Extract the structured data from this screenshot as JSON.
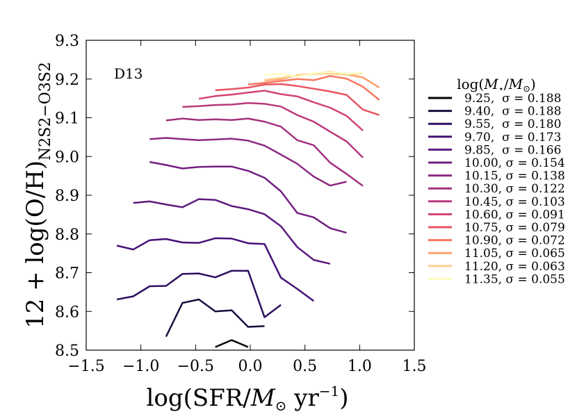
{
  "chart_data": {
    "type": "line",
    "annotation": "D13",
    "xlabel": "log(SFR/M⊙ yr⁻¹)",
    "ylabel": "12 + log(O/H)N2S2−O3S2",
    "xlim": [
      -1.5,
      1.5
    ],
    "ylim": [
      8.5,
      9.3
    ],
    "xticks": [
      -1.5,
      -1.0,
      -0.5,
      0.0,
      0.5,
      1.0,
      1.5
    ],
    "xtick_labels": [
      "−1.5",
      "−1.0",
      "−0.5",
      "0.0",
      "0.5",
      "1.0",
      "1.5"
    ],
    "yticks": [
      8.5,
      8.6,
      8.7,
      8.8,
      8.9,
      9.0,
      9.1,
      9.2,
      9.3
    ],
    "ytick_labels": [
      "8.5",
      "8.6",
      "8.7",
      "8.8",
      "8.9",
      "9.0",
      "9.1",
      "9.2",
      "9.3"
    ],
    "legend_title": "log(M⋆/M⊙)",
    "legend_position": "right, outside plot",
    "series": [
      {
        "name": "9.25,  σ = 0.188",
        "color": "#000004",
        "x": [
          -0.32,
          -0.17,
          -0.02
        ],
        "y": [
          8.508,
          8.526,
          8.508
        ]
      },
      {
        "name": "9.40,  σ = 0.188",
        "color": "#180f3e",
        "x": [
          -0.77,
          -0.62,
          -0.47,
          -0.32,
          -0.17,
          -0.02,
          0.13
        ],
        "y": [
          8.535,
          8.622,
          8.631,
          8.6,
          8.603,
          8.56,
          8.562
        ]
      },
      {
        "name": "9.55,  σ = 0.180",
        "color": "#2d1160",
        "x": [
          -1.22,
          -1.07,
          -0.92,
          -0.77,
          -0.62,
          -0.47,
          -0.32,
          -0.17,
          -0.02,
          0.13,
          0.28
        ],
        "y": [
          8.631,
          8.639,
          8.665,
          8.666,
          8.697,
          8.698,
          8.688,
          8.705,
          8.705,
          8.585,
          8.617
        ]
      },
      {
        "name": "9.70,  σ = 0.173",
        "color": "#451077",
        "x": [
          -1.22,
          -1.07,
          -0.92,
          -0.77,
          -0.62,
          -0.47,
          -0.32,
          -0.17,
          -0.02,
          0.13,
          0.28,
          0.43,
          0.58
        ],
        "y": [
          8.77,
          8.76,
          8.784,
          8.787,
          8.778,
          8.777,
          8.789,
          8.788,
          8.776,
          8.774,
          8.687,
          8.658,
          8.627
        ]
      },
      {
        "name": "9.85,  σ = 0.166",
        "color": "#5c1a7d",
        "x": [
          -1.07,
          -0.92,
          -0.77,
          -0.62,
          -0.47,
          -0.32,
          -0.17,
          -0.02,
          0.13,
          0.28,
          0.43,
          0.58,
          0.73
        ],
        "y": [
          8.88,
          8.884,
          8.876,
          8.869,
          8.89,
          8.888,
          8.872,
          8.864,
          8.851,
          8.82,
          8.766,
          8.733,
          8.723
        ]
      },
      {
        "name": "10.00, σ = 0.154",
        "color": "#721f81",
        "x": [
          -0.92,
          -0.77,
          -0.62,
          -0.47,
          -0.32,
          -0.17,
          -0.02,
          0.13,
          0.28,
          0.43,
          0.58,
          0.73,
          0.88
        ],
        "y": [
          8.986,
          8.978,
          8.969,
          8.973,
          8.974,
          8.974,
          8.963,
          8.945,
          8.91,
          8.854,
          8.843,
          8.815,
          8.803
        ]
      },
      {
        "name": "10.15, σ = 0.138",
        "color": "#8c2981",
        "x": [
          -0.92,
          -0.77,
          -0.62,
          -0.47,
          -0.32,
          -0.17,
          -0.02,
          0.13,
          0.28,
          0.43,
          0.58,
          0.73,
          0.88
        ],
        "y": [
          9.045,
          9.048,
          9.045,
          9.042,
          9.044,
          9.046,
          9.041,
          9.028,
          9.005,
          8.981,
          8.948,
          8.925,
          8.935
        ]
      },
      {
        "name": "10.30, σ = 0.122",
        "color": "#a3307e",
        "x": [
          -0.77,
          -0.62,
          -0.47,
          -0.32,
          -0.17,
          -0.02,
          0.13,
          0.28,
          0.43,
          0.58,
          0.73,
          0.88,
          1.03
        ],
        "y": [
          9.093,
          9.098,
          9.094,
          9.096,
          9.094,
          9.098,
          9.09,
          9.077,
          9.042,
          9.029,
          8.984,
          8.955,
          8.924
        ]
      },
      {
        "name": "10.45, σ = 0.103",
        "color": "#bb3779",
        "x": [
          -0.62,
          -0.47,
          -0.32,
          -0.17,
          -0.02,
          0.13,
          0.28,
          0.43,
          0.58,
          0.73,
          0.88,
          1.03
        ],
        "y": [
          9.128,
          9.13,
          9.133,
          9.134,
          9.138,
          9.136,
          9.129,
          9.107,
          9.09,
          9.064,
          9.039,
          8.997
        ]
      },
      {
        "name": "10.60, σ = 0.091",
        "color": "#d3436e",
        "x": [
          -0.47,
          -0.32,
          -0.17,
          -0.02,
          0.13,
          0.28,
          0.43,
          0.58,
          0.73,
          0.88,
          1.03
        ],
        "y": [
          9.149,
          9.156,
          9.16,
          9.165,
          9.17,
          9.161,
          9.155,
          9.14,
          9.126,
          9.105,
          9.067
        ]
      },
      {
        "name": "10.75, σ = 0.079",
        "color": "#e85362",
        "x": [
          -0.32,
          -0.17,
          -0.02,
          0.13,
          0.28,
          0.43,
          0.58,
          0.73,
          0.88,
          1.03,
          1.18
        ],
        "y": [
          9.171,
          9.174,
          9.178,
          9.186,
          9.187,
          9.182,
          9.175,
          9.168,
          9.159,
          9.121,
          9.107
        ]
      },
      {
        "name": "10.90, σ = 0.072",
        "color": "#f8765c",
        "x": [
          -0.02,
          0.13,
          0.28,
          0.43,
          0.58,
          0.73,
          0.88,
          1.03,
          1.18
        ],
        "y": [
          9.186,
          9.19,
          9.195,
          9.2,
          9.197,
          9.208,
          9.201,
          9.18,
          9.146
        ]
      },
      {
        "name": "11.05, σ = 0.065",
        "color": "#fe9f6d",
        "x": [
          0.13,
          0.28,
          0.43,
          0.58,
          0.73,
          0.88,
          1.03,
          1.18
        ],
        "y": [
          9.196,
          9.2,
          9.21,
          9.214,
          9.219,
          9.212,
          9.204,
          9.178
        ]
      },
      {
        "name": "11.20, σ = 0.063",
        "color": "#fecf92",
        "x": [
          0.13,
          0.28,
          0.43,
          0.58,
          0.73,
          0.88,
          1.03
        ],
        "y": [
          9.198,
          9.203,
          9.209,
          9.213,
          9.214,
          9.211,
          9.214
        ]
      },
      {
        "name": "11.35, σ = 0.055",
        "color": "#fcfdbf",
        "x": [
          0.13,
          0.28,
          0.43,
          0.58,
          0.73,
          0.88,
          1.03
        ],
        "y": [
          9.211,
          9.213,
          9.206,
          9.215,
          9.218,
          9.214,
          9.215
        ]
      }
    ]
  }
}
